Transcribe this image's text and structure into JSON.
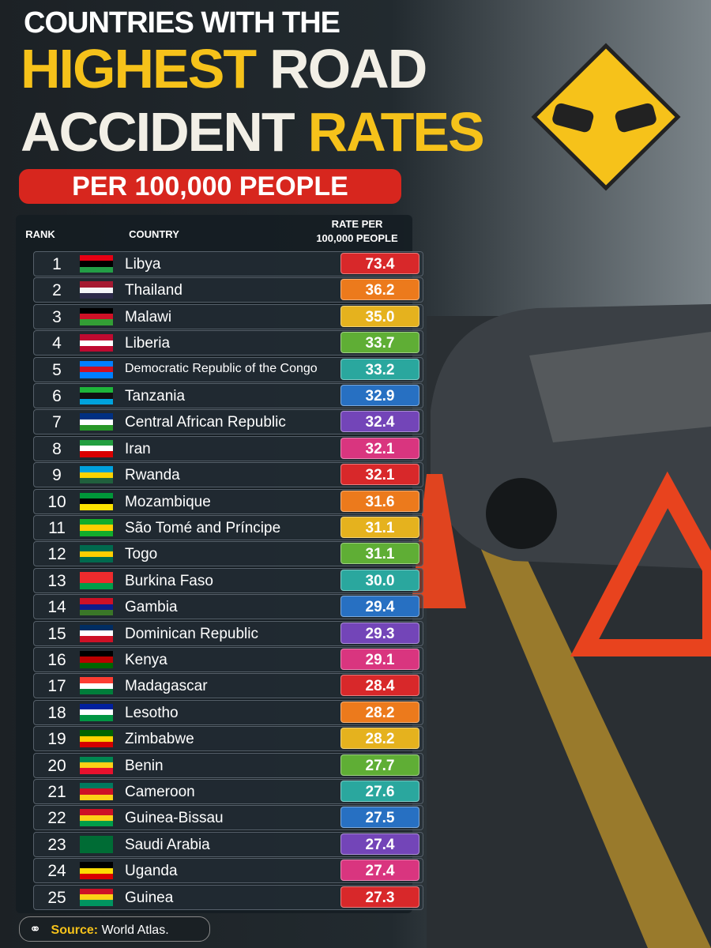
{
  "header": {
    "line1": "COUNTRIES WITH THE",
    "line2": [
      "HIGHEST",
      "ROAD"
    ],
    "line3": [
      "ACCIDENT",
      "RATES"
    ],
    "subtitle": "PER 100,000 PEOPLE"
  },
  "table": {
    "columns": [
      "RANK",
      "COUNTRY",
      "RATE PER 100,000 PEOPLE"
    ],
    "rows": [
      [
        1,
        "Libya",
        "73.4"
      ],
      [
        2,
        "Thailand",
        "36.2"
      ],
      [
        3,
        "Malawi",
        "35.0"
      ],
      [
        4,
        "Liberia",
        "33.7"
      ],
      [
        5,
        "Democratic Republic of the Congo",
        "33.2"
      ],
      [
        6,
        "Tanzania",
        "32.9"
      ],
      [
        7,
        "Central African Republic",
        "32.4"
      ],
      [
        8,
        "Iran",
        "32.1"
      ],
      [
        9,
        "Rwanda",
        "32.1"
      ],
      [
        10,
        "Mozambique",
        "31.6"
      ],
      [
        11,
        "São Tomé and Príncipe",
        "31.1"
      ],
      [
        12,
        "Togo",
        "31.1"
      ],
      [
        13,
        "Burkina Faso",
        "30.0"
      ],
      [
        14,
        "Gambia",
        "29.4"
      ],
      [
        15,
        "Dominican Republic",
        "29.3"
      ],
      [
        16,
        "Kenya",
        "29.1"
      ],
      [
        17,
        "Madagascar",
        "28.4"
      ],
      [
        18,
        "Lesotho",
        "28.2"
      ],
      [
        19,
        "Zimbabwe",
        "28.2"
      ],
      [
        20,
        "Benin",
        "27.7"
      ],
      [
        21,
        "Cameroon",
        "27.6"
      ],
      [
        22,
        "Guinea-Bissau",
        "27.5"
      ],
      [
        23,
        "Saudi Arabia",
        "27.4"
      ],
      [
        24,
        "Uganda",
        "27.4"
      ],
      [
        25,
        "Guinea",
        "27.3"
      ]
    ]
  },
  "footer": {
    "source_label": "Source:",
    "source": "World Atlas."
  }
}
